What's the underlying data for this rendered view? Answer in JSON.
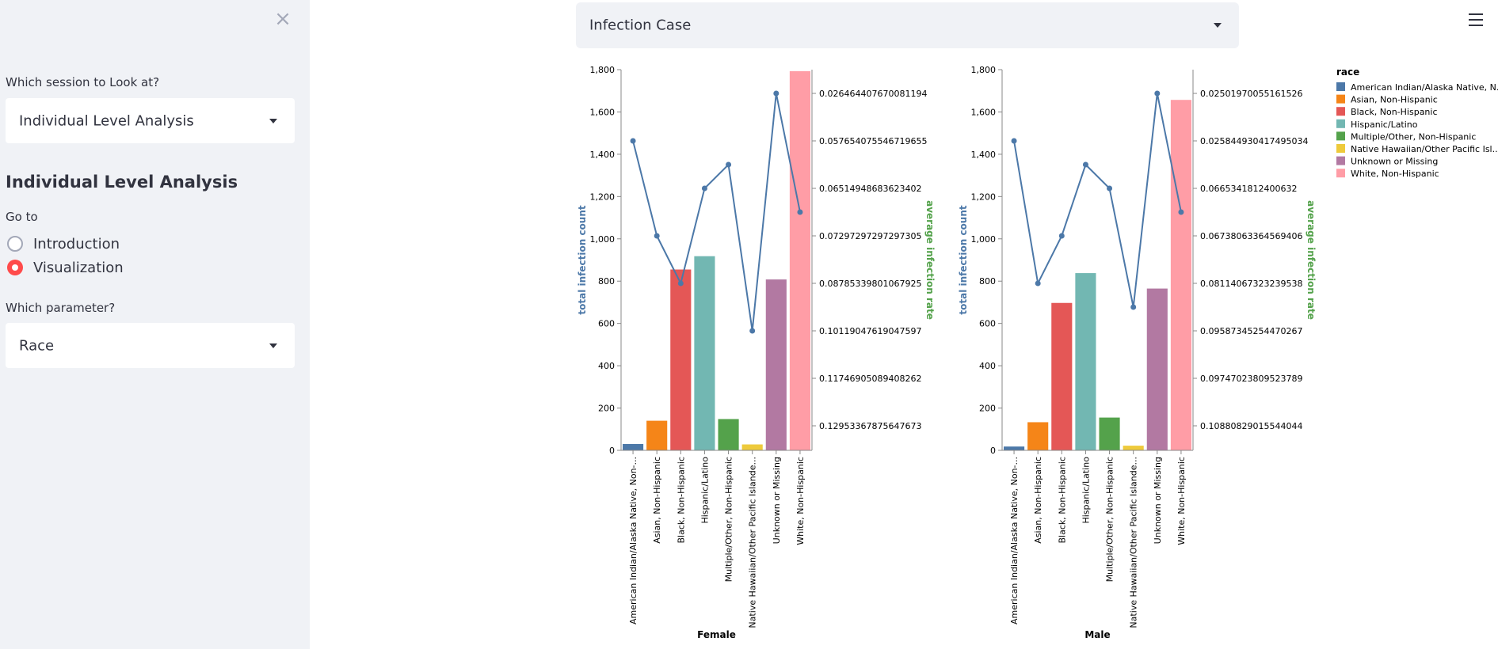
{
  "sidebar": {
    "session_label": "Which session to Look at?",
    "session_value": "Individual Level Analysis",
    "heading": "Individual Level Analysis",
    "goto_label": "Go to",
    "radios": [
      {
        "label": "Introduction",
        "selected": false
      },
      {
        "label": "Visualization",
        "selected": true
      }
    ],
    "parameter_label": "Which parameter?",
    "parameter_value": "Race",
    "accent_color": "#ff4b4b"
  },
  "main": {
    "metric_value": "Infection Case"
  },
  "chart_data": {
    "type": "bar",
    "legend": {
      "title": "race",
      "placement": "top-right",
      "entries": [
        {
          "label": "American Indian/Alaska Native, N...",
          "color": "#4c78a8"
        },
        {
          "label": "Asian, Non-Hispanic",
          "color": "#f58518"
        },
        {
          "label": "Black, Non-Hispanic",
          "color": "#e45756"
        },
        {
          "label": "Hispanic/Latino",
          "color": "#72b7b2"
        },
        {
          "label": "Multiple/Other, Non-Hispanic",
          "color": "#54a24b"
        },
        {
          "label": "Native Hawaiian/Other Pacific Isl...",
          "color": "#eeca3b"
        },
        {
          "label": "Unknown or Missing",
          "color": "#b279a2"
        },
        {
          "label": "White, Non-Hispanic",
          "color": "#ff9da6"
        }
      ]
    },
    "categories": [
      "American Indian/Alaska Native, Non-...",
      "Asian, Non-Hispanic",
      "Black, Non-Hispanic",
      "Hispanic/Latino",
      "Multiple/Other, Non-Hispanic",
      "Native Hawaiian/Other Pacific Islande...",
      "Unknown or Missing",
      "White, Non-Hispanic"
    ],
    "line_color": "#4c78a8",
    "left_axis_label": "total infection count",
    "right_axis_label": "average infection rate",
    "left_axis_color": "#4c78a8",
    "right_axis_color": "#54a24b",
    "ylim": [
      0,
      1800
    ],
    "yticks": [
      0,
      200,
      400,
      600,
      800,
      1000,
      1200,
      1400,
      1600,
      1800
    ],
    "ytick_labels": [
      "0",
      "200",
      "400",
      "600",
      "800",
      "1,000",
      "1,200",
      "1,400",
      "1,600",
      "1,800"
    ],
    "panels": [
      {
        "facet": "Female",
        "values": [
          30,
          140,
          855,
          918,
          148,
          28,
          808,
          1793
        ],
        "right_ticks": [
          "0.02646440767008119​4",
          "0.05765407554671965​5",
          "0.06514948683623402",
          "0.07297297297297305",
          "0.08785339801067925",
          "0.10119047619047597",
          "0.11746905089408262",
          "0.12953367875647673"
        ],
        "line_rank": [
          2,
          6,
          8,
          4,
          3,
          10,
          0,
          5
        ]
      },
      {
        "facet": "Male",
        "values": [
          18,
          133,
          697,
          838,
          155,
          22,
          765,
          1657
        ],
        "right_ticks": [
          "0.02501970055161526",
          "0.025844930417495034",
          "0.0665341812400632",
          "0.06738063364569406",
          "0.08114067323239538",
          "0.09587345254470267",
          "0.09747023809523789",
          "0.10880829015544044"
        ],
        "line_rank": [
          2,
          8,
          6,
          3,
          4,
          9,
          0,
          5
        ]
      }
    ]
  }
}
